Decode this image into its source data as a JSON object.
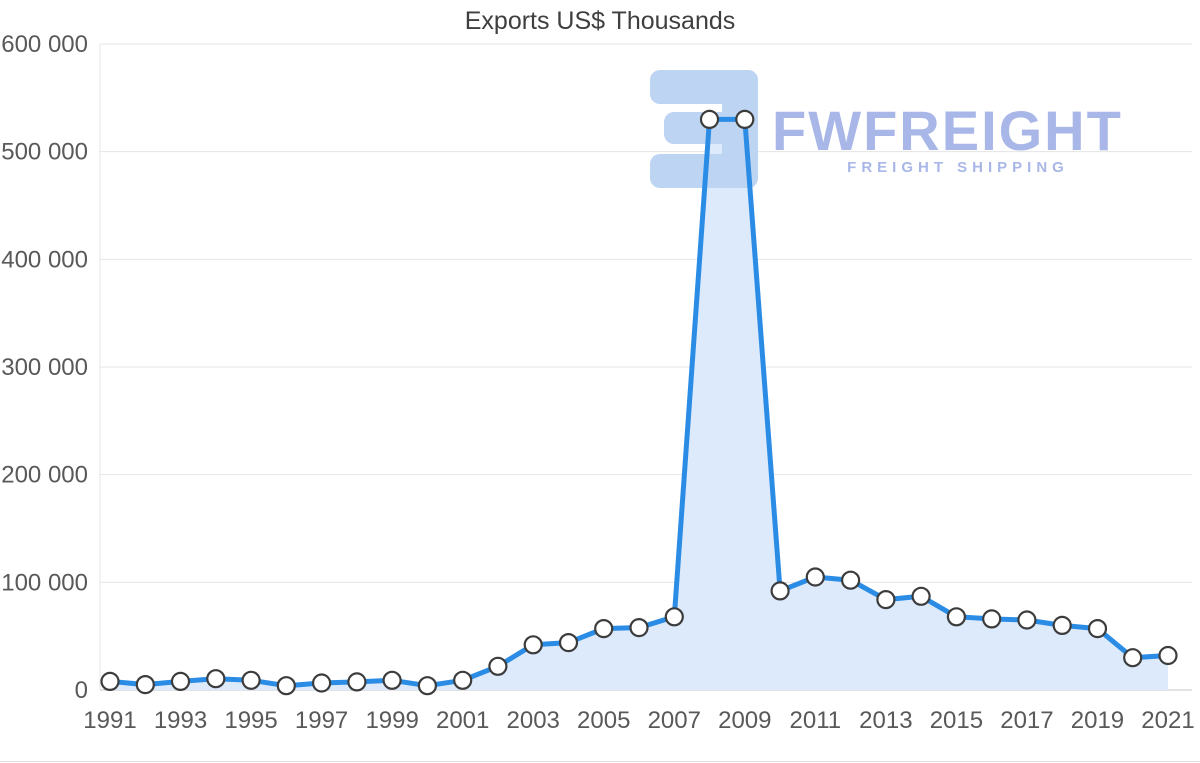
{
  "chart_data": {
    "type": "area",
    "title": "Exports US$ Thousands",
    "x": [
      1991,
      1992,
      1993,
      1994,
      1995,
      1996,
      1997,
      1998,
      1999,
      2000,
      2001,
      2002,
      2003,
      2004,
      2005,
      2006,
      2007,
      2008,
      2009,
      2010,
      2011,
      2012,
      2013,
      2014,
      2015,
      2016,
      2017,
      2018,
      2019,
      2020,
      2021
    ],
    "values": [
      8000,
      5000,
      8000,
      10500,
      9000,
      4000,
      6500,
      7500,
      9000,
      4000,
      9000,
      22000,
      42000,
      44000,
      57000,
      58000,
      68000,
      530000,
      530000,
      92000,
      105000,
      102000,
      84000,
      87000,
      68000,
      66000,
      65000,
      60000,
      57000,
      30000,
      32000
    ],
    "xtick_labels": [
      "1991",
      "1993",
      "1995",
      "1997",
      "1999",
      "2001",
      "2003",
      "2005",
      "2007",
      "2009",
      "2011",
      "2013",
      "2015",
      "2017",
      "2019",
      "2021"
    ],
    "ytick_labels": [
      "0",
      "100 000",
      "200 000",
      "300 000",
      "400 000",
      "500 000",
      "600 000"
    ],
    "ylim": [
      0,
      600000
    ],
    "xlabel": "",
    "ylabel": "",
    "grid": "horizontal",
    "legend": "none"
  },
  "watermark": {
    "title": "FWFREIGHT",
    "subtitle": "FREIGHT SHIPPING"
  },
  "colors": {
    "line": "#2b8ce6",
    "area": "#ddeafc",
    "marker_fill": "#ffffff",
    "marker_stroke": "#3c3c3c",
    "grid": "#e4e4e4",
    "axis": "#c6c6c6",
    "tick_text": "#595959",
    "title_text": "#3f3f3f",
    "watermark_text": "#a9b7e8",
    "watermark_glyph": "#bdd5f3"
  }
}
